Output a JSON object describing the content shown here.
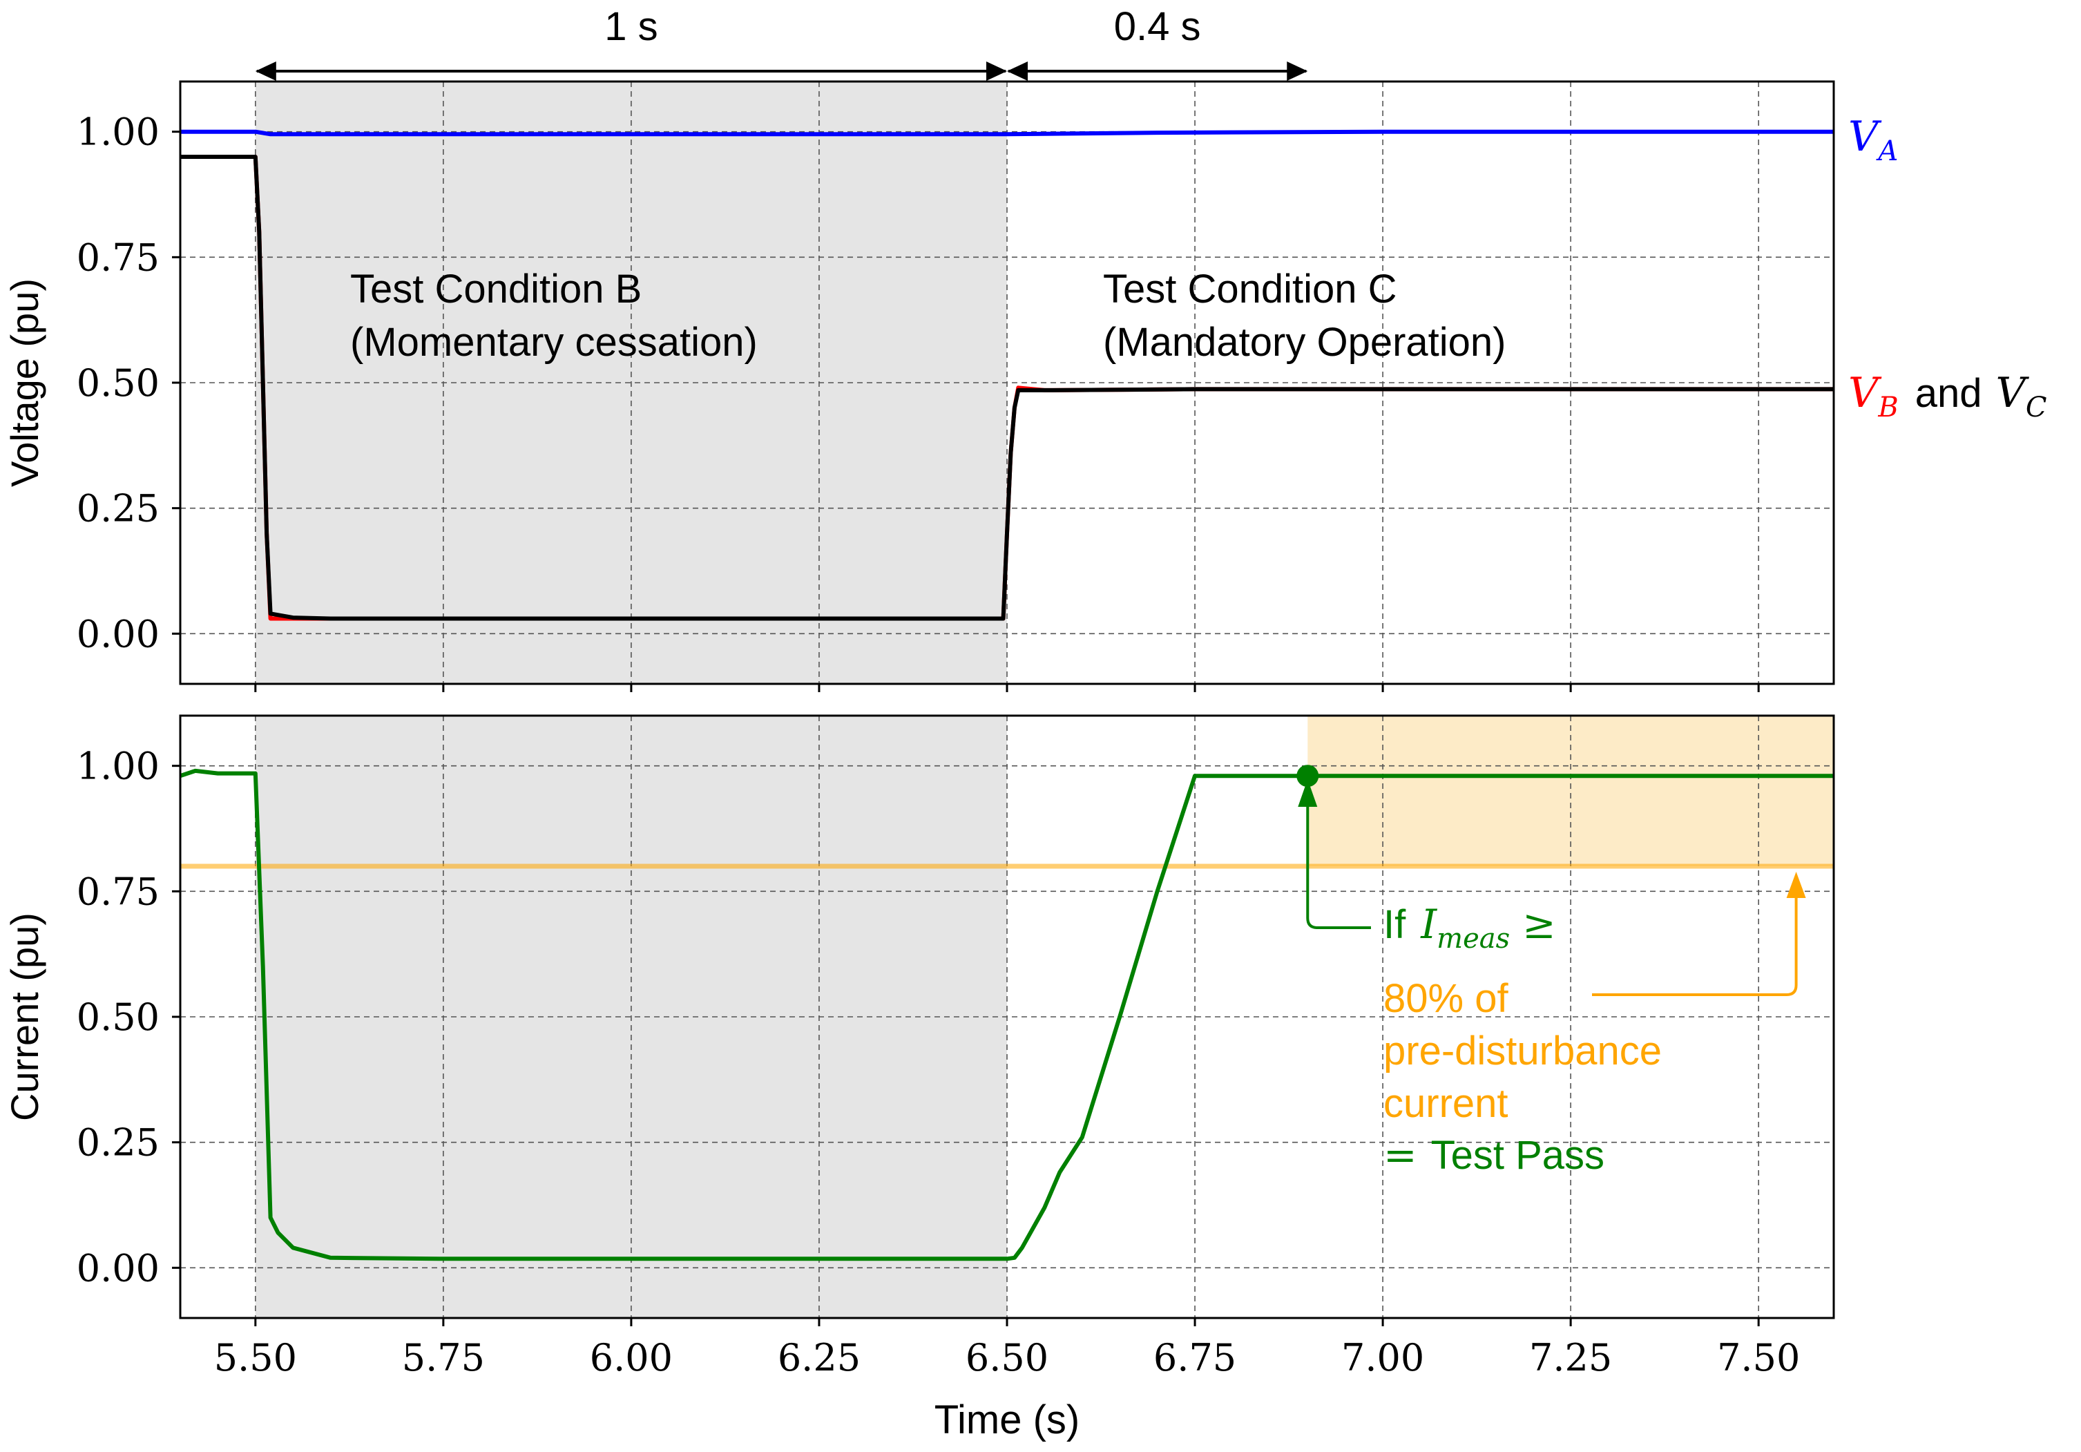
{
  "colors": {
    "va": "#0000ff",
    "vb": "#ff0000",
    "vc": "#000000",
    "current": "#008000",
    "threshold": "#ffa500",
    "threshold_fill": "#fdebc7",
    "shade": "#e5e5e5",
    "grid": "#555555"
  },
  "top_spans": [
    {
      "label": "1 s",
      "from": 5.5,
      "to": 6.5
    },
    {
      "label": "0.4 s",
      "from": 6.5,
      "to": 6.9
    }
  ],
  "chart_data": [
    {
      "type": "line",
      "ylabel": "Voltage (pu)",
      "xlim": [
        5.4,
        7.6
      ],
      "ylim": [
        -0.1,
        1.1
      ],
      "yticks": [
        0.0,
        0.25,
        0.5,
        0.75,
        1.0
      ],
      "ytick_labels": [
        "0.00",
        "0.25",
        "0.50",
        "0.75",
        "1.00"
      ],
      "grid": true,
      "shaded_region": {
        "x": [
          5.5,
          6.5
        ]
      },
      "series": [
        {
          "name": "V_A",
          "color": "#0000ff",
          "x": [
            5.4,
            5.5,
            5.52,
            6.0,
            6.5,
            6.7,
            7.0,
            7.6
          ],
          "y": [
            1.0,
            1.0,
            0.995,
            0.995,
            0.995,
            0.998,
            1.0,
            1.0
          ]
        },
        {
          "name": "V_B",
          "color": "#ff0000",
          "x": [
            5.4,
            5.5,
            5.505,
            5.51,
            5.515,
            5.52,
            5.55,
            5.6,
            6.0,
            6.495,
            6.5,
            6.505,
            6.51,
            6.515,
            6.55,
            6.75,
            7.6
          ],
          "y": [
            0.95,
            0.95,
            0.8,
            0.5,
            0.2,
            0.03,
            0.03,
            0.03,
            0.03,
            0.03,
            0.2,
            0.36,
            0.45,
            0.49,
            0.485,
            0.487,
            0.487
          ]
        },
        {
          "name": "V_C",
          "color": "#000000",
          "x": [
            5.4,
            5.5,
            5.505,
            5.51,
            5.515,
            5.52,
            5.55,
            5.6,
            6.0,
            6.495,
            6.5,
            6.505,
            6.51,
            6.515,
            6.55,
            6.75,
            7.6
          ],
          "y": [
            0.95,
            0.95,
            0.8,
            0.5,
            0.2,
            0.04,
            0.032,
            0.03,
            0.03,
            0.03,
            0.2,
            0.36,
            0.45,
            0.485,
            0.485,
            0.487,
            0.487
          ]
        }
      ],
      "series_labels": [
        {
          "symbol": "V",
          "sub": "A",
          "color": "#0000ff"
        },
        {
          "symbol": "V",
          "sub": "B",
          "color": "#ff0000",
          "joiner": "and",
          "symbol2": "V",
          "sub2": "C",
          "color2": "#000000"
        }
      ],
      "annotations": [
        {
          "lines": [
            "Test Condition B",
            "(Momentary cessation)"
          ]
        },
        {
          "lines": [
            "Test Condition C",
            "(Mandatory Operation)"
          ]
        }
      ]
    },
    {
      "type": "line",
      "ylabel": "Current (pu)",
      "xlabel": "Time (s)",
      "xlim": [
        5.4,
        7.6
      ],
      "ylim": [
        -0.1,
        1.1
      ],
      "xticks": [
        5.5,
        5.75,
        6.0,
        6.25,
        6.5,
        6.75,
        7.0,
        7.25,
        7.5
      ],
      "xtick_labels": [
        "5.50",
        "5.75",
        "6.00",
        "6.25",
        "6.50",
        "6.75",
        "7.00",
        "7.25",
        "7.50"
      ],
      "yticks": [
        0.0,
        0.25,
        0.5,
        0.75,
        1.0
      ],
      "ytick_labels": [
        "0.00",
        "0.25",
        "0.50",
        "0.75",
        "1.00"
      ],
      "grid": true,
      "shaded_region": {
        "x": [
          5.5,
          6.5
        ]
      },
      "threshold": {
        "y": 0.8,
        "fill_x_from": 6.9,
        "fill_y": [
          0.8,
          1.1
        ]
      },
      "series": [
        {
          "name": "I_meas",
          "color": "#008000",
          "x": [
            5.4,
            5.42,
            5.45,
            5.5,
            5.51,
            5.52,
            5.53,
            5.55,
            5.6,
            5.75,
            6.0,
            6.25,
            6.5,
            6.51,
            6.52,
            6.55,
            6.57,
            6.6,
            6.65,
            6.7,
            6.75,
            7.0,
            7.6
          ],
          "y": [
            0.98,
            0.99,
            0.985,
            0.985,
            0.6,
            0.1,
            0.07,
            0.04,
            0.02,
            0.018,
            0.018,
            0.018,
            0.018,
            0.02,
            0.04,
            0.12,
            0.19,
            0.26,
            0.5,
            0.75,
            0.98,
            0.98,
            0.98
          ]
        }
      ],
      "marker": {
        "x": 6.9,
        "y": 0.98
      },
      "annotation": {
        "cond_prefix": "If",
        "cond_symbol": "I",
        "cond_sub": "meas",
        "cond_op": "≥",
        "threshold_lines": [
          "80% of",
          "pre-disturbance",
          "current"
        ],
        "result_op": "=",
        "result_text": "Test Pass"
      }
    }
  ]
}
